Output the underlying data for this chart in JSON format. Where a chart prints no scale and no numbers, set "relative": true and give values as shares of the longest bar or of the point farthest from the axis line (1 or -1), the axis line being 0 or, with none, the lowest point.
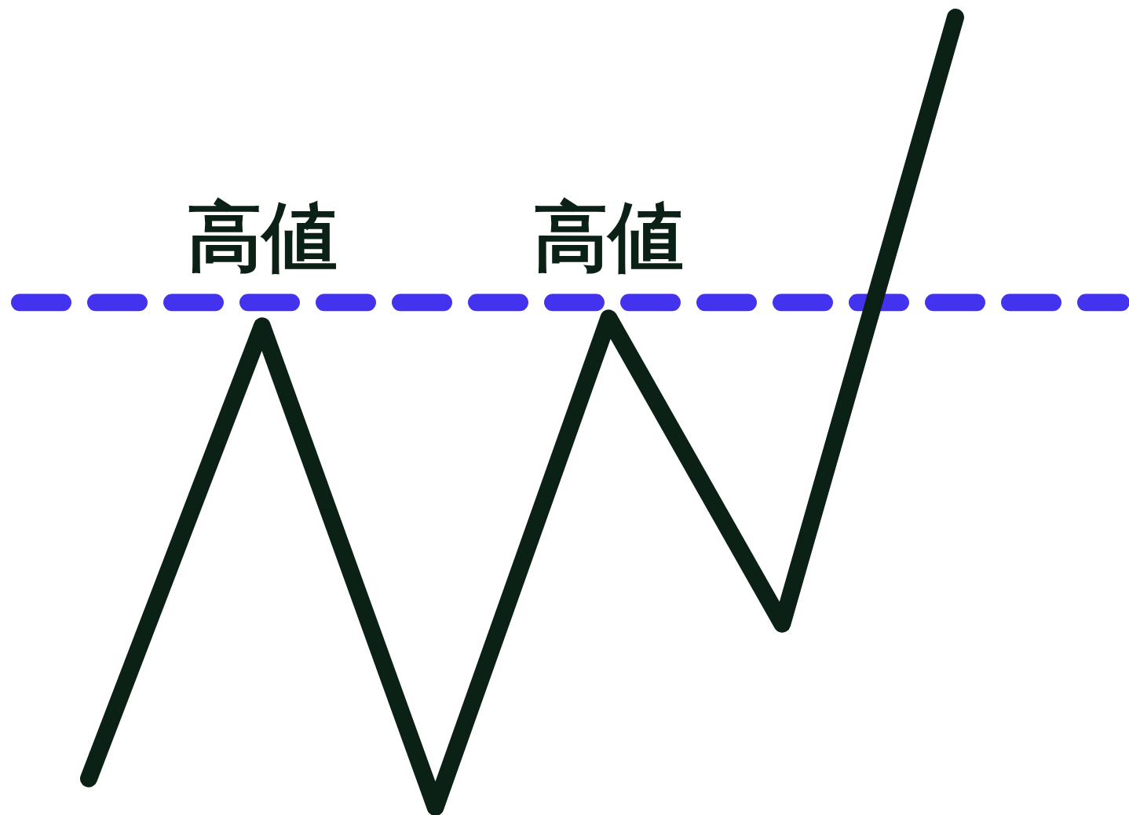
{
  "chart_data": {
    "type": "line",
    "relative": true,
    "categories": [
      null,
      null,
      null,
      null,
      null,
      null
    ],
    "series": [
      {
        "color": "#0b2116",
        "values": [
          0.036,
          0.609,
          0,
          0.619,
          0.232,
          1
        ]
      }
    ],
    "ref_lines": [
      {
        "axis": "y",
        "value": 0.639,
        "color": "#4433ee",
        "line_style": "dashed"
      }
    ],
    "annotations": [
      "高値",
      "高値"
    ],
    "line_style": "solid",
    "marker": "none"
  }
}
